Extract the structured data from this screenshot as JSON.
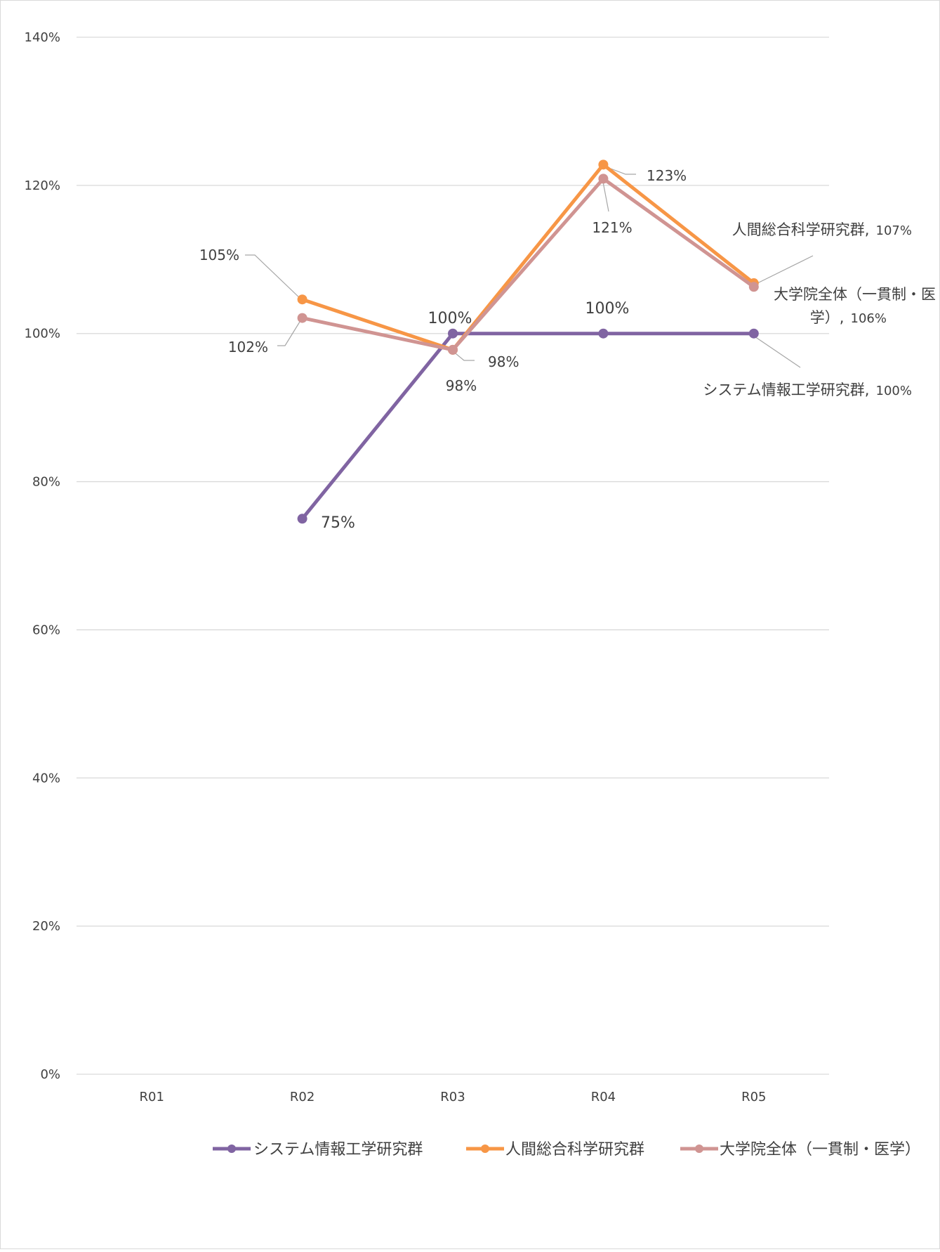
{
  "chart_data": {
    "type": "line",
    "categories": [
      "R01",
      "R02",
      "R03",
      "R04",
      "R05"
    ],
    "ylim": [
      0,
      140
    ],
    "ytick_values": [
      0,
      20,
      40,
      60,
      80,
      100,
      120,
      140
    ],
    "ytick_labels": [
      "0%",
      "20%",
      "40%",
      "60%",
      "80%",
      "100%",
      "120%",
      "140%"
    ],
    "grid": true,
    "legend_position": "bottom",
    "series": [
      {
        "name": "システム情報工学研究群",
        "color": "#8064a2",
        "values": [
          null,
          75,
          100,
          100,
          100
        ],
        "labels": [
          null,
          "75%",
          "100%",
          "100%",
          "システム情報工学研究群, 100%"
        ]
      },
      {
        "name": "人間総合科学研究群",
        "color": "#f79646",
        "values": [
          null,
          104.6,
          97.8,
          122.8,
          106.8
        ],
        "labels": [
          null,
          "105%",
          "98%",
          "123%",
          "人間総合科学研究群, 107%"
        ]
      },
      {
        "name": "大学院全体（一貫制・医学）",
        "color": "#d09492",
        "values": [
          null,
          102.1,
          97.8,
          120.9,
          106.3
        ],
        "labels": [
          null,
          "102%",
          "98%",
          "121%",
          "大学院全体（一貫制・医学）, 106%"
        ]
      }
    ]
  },
  "text": {
    "label_sys_r05_name": "システム情報工学研究群,",
    "label_sys_r05_val": "100%",
    "label_hum_r05_name": "人間総合科学研究群,",
    "label_hum_r05_val": "107%",
    "label_all_r05_line1": "大学院全体（一貫制・医",
    "label_all_r05_line2_name": "学）,",
    "label_all_r05_line2_val": "106%"
  }
}
